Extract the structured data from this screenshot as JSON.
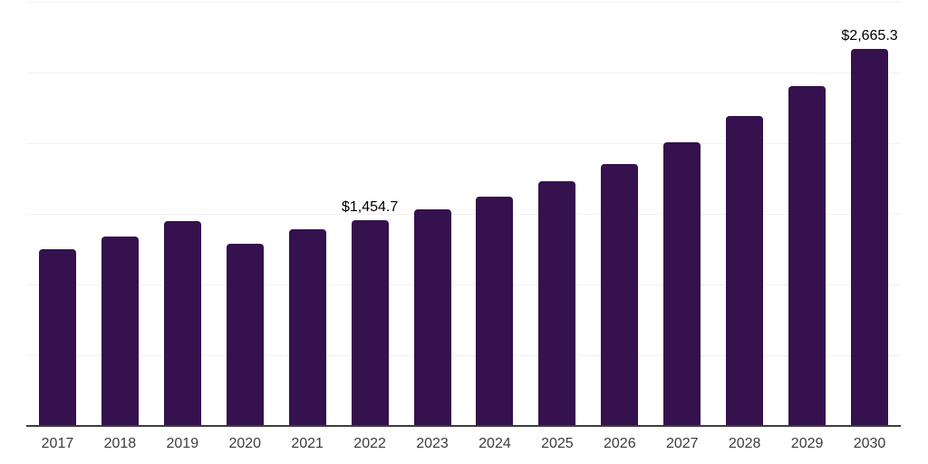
{
  "chart_data": {
    "type": "bar",
    "title": "",
    "xlabel": "",
    "ylabel": "",
    "categories": [
      "2017",
      "2018",
      "2019",
      "2020",
      "2021",
      "2022",
      "2023",
      "2024",
      "2025",
      "2026",
      "2027",
      "2028",
      "2029",
      "2030"
    ],
    "values": [
      1247,
      1343,
      1452,
      1290,
      1388,
      1454.7,
      1532,
      1625,
      1730,
      1851,
      2008,
      2190,
      2405,
      2665.3
    ],
    "data_labels": {
      "2022": "$1,454.7",
      "2030": "$2,665.3"
    },
    "ylim": [
      0,
      3000
    ],
    "gridline_step": 500,
    "grid": true,
    "y_axis_tick_labels_visible": false,
    "legend_position": "none",
    "colors": {
      "bar": "#35114D",
      "gridline": "#f1f1f2",
      "axis_line": "#3d3d3d",
      "value_label_text": "#000000",
      "x_tick_text": "#3c3c3c",
      "background": "#ffffff"
    }
  }
}
